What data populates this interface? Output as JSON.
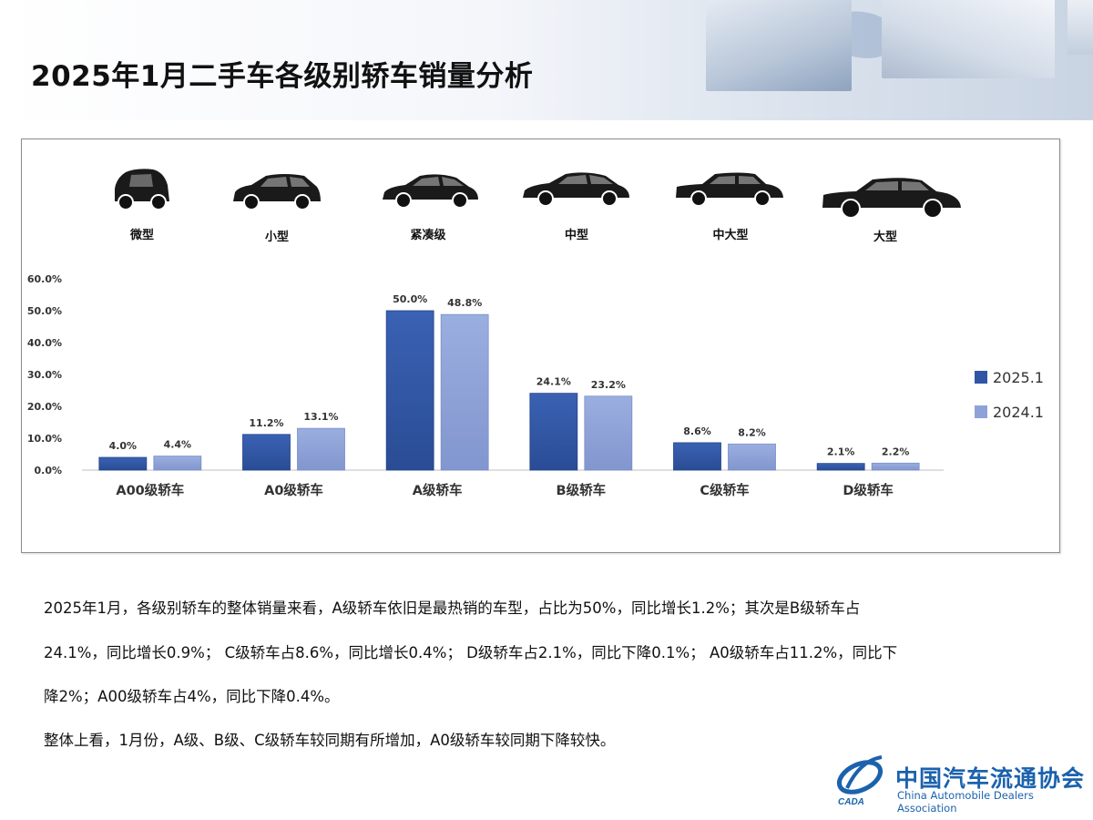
{
  "title": "2025年1月二手车各级别轿车销量分析",
  "car_types": [
    {
      "label": "微型",
      "icon": "microcar-icon"
    },
    {
      "label": "小型",
      "icon": "hatchback-icon"
    },
    {
      "label": "紧凑级",
      "icon": "compact-sedan-icon"
    },
    {
      "label": "中型",
      "icon": "midsize-sedan-icon"
    },
    {
      "label": "中大型",
      "icon": "large-sedan-icon"
    },
    {
      "label": "大型",
      "icon": "full-size-sedan-icon"
    }
  ],
  "chart_data": {
    "type": "bar",
    "categories": [
      "A00级轿车",
      "A0级轿车",
      "A级轿车",
      "B级轿车",
      "C级轿车",
      "D级轿车"
    ],
    "series": [
      {
        "name": "2025.1",
        "values": [
          4.0,
          11.2,
          50.0,
          24.1,
          8.6,
          2.1
        ],
        "labels": [
          "4.0%",
          "11.2%",
          "50.0%",
          "24.1%",
          "8.6%",
          "2.1%"
        ],
        "color": "#2f55a4"
      },
      {
        "name": "2024.1",
        "values": [
          4.4,
          13.1,
          48.8,
          23.2,
          8.2,
          2.2
        ],
        "labels": [
          "4.4%",
          "13.1%",
          "48.8%",
          "23.2%",
          "8.2%",
          "2.2%"
        ],
        "color": "#8ea2d8"
      }
    ],
    "yticks": [
      "0.0%",
      "10.0%",
      "20.0%",
      "30.0%",
      "40.0%",
      "50.0%",
      "60.0%"
    ],
    "ylim": [
      0,
      60
    ],
    "legend": "right",
    "grid": false
  },
  "paragraphs": [
    "2025年1月，各级别轿车的整体销量来看，A级轿车依旧是最热销的车型，占比为50%，同比增长1.2%；其次是B级轿车占",
    "24.1%，同比增长0.9%； C级轿车占8.6%，同比增长0.4%； D级轿车占2.1%，同比下降0.1%； A0级轿车占11.2%，同比下",
    "降2%；A00级轿车占4%，同比下降0.4%。",
    "整体上看，1月份，A级、B级、C级轿车较同期有所增加，A0级轿车较同期下降较快。"
  ],
  "logo": {
    "name_cn": "中国汽车流通协会",
    "name_en": "China Automobile Dealers Association",
    "mark_text": "CADA"
  }
}
